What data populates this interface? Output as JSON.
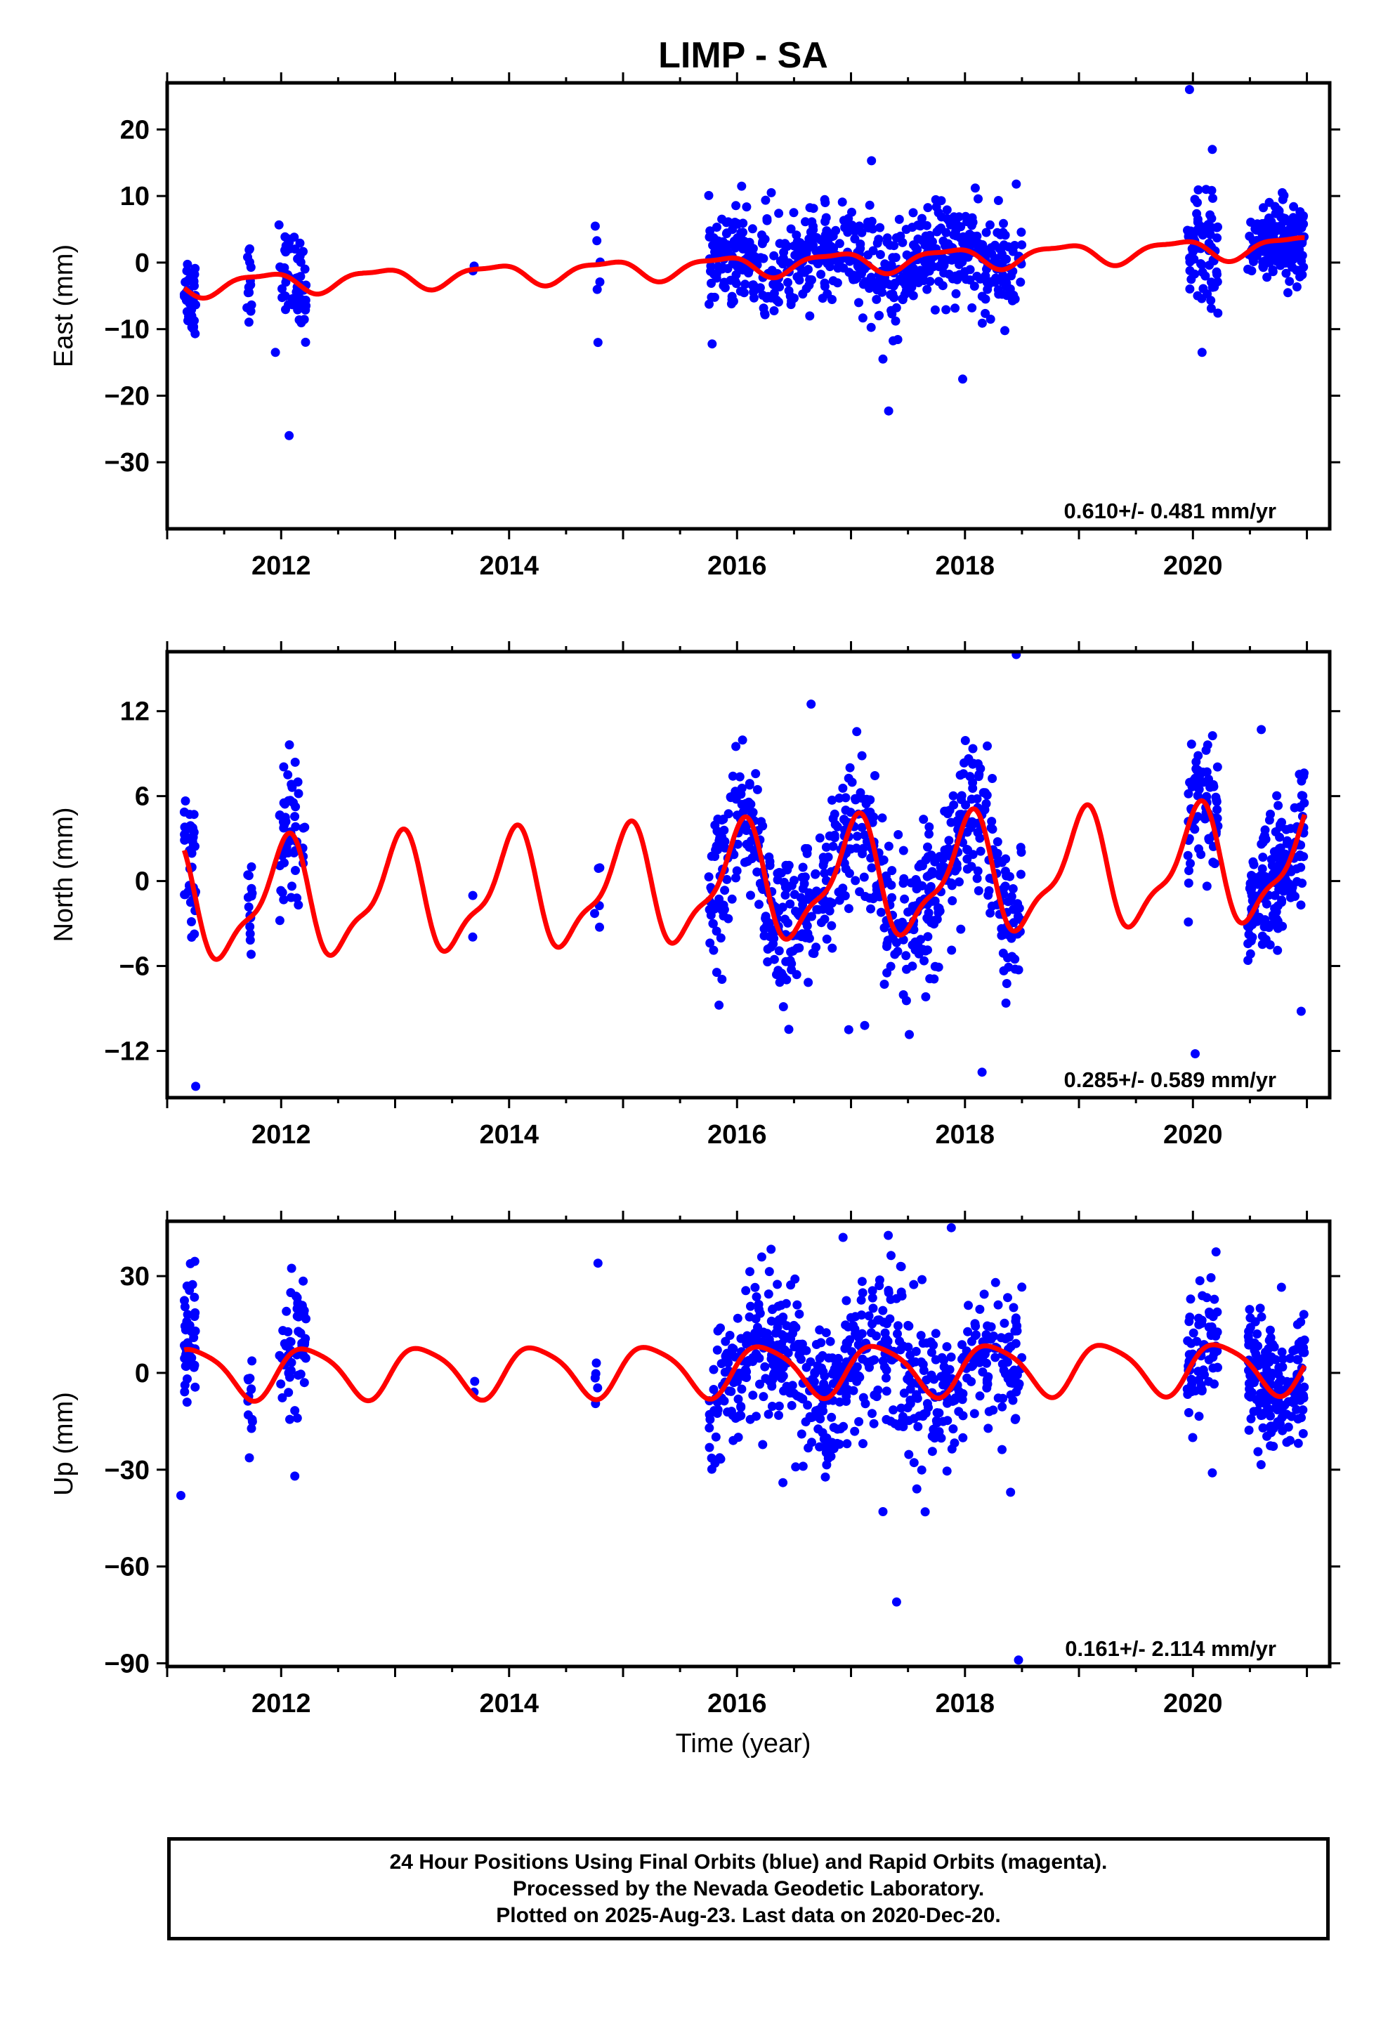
{
  "chart_data": {
    "title": "LIMP - SA",
    "type": "scatter",
    "xlabel": "Time (year)",
    "xlim": [
      2011.0,
      2021.2
    ],
    "xticks": [
      2012,
      2014,
      2016,
      2018,
      2020
    ],
    "colors": {
      "final_orbits": "#0000ff",
      "rapid_orbits": "#ff00ff",
      "model_fit": "#ff0000"
    },
    "panels": [
      {
        "component": "East",
        "ylabel": "East (mm)",
        "ylim": [
          -40,
          27
        ],
        "yticks": [
          20,
          10,
          0,
          -10,
          -20,
          -30
        ],
        "tick_labels": [
          "20",
          "10",
          "0",
          "−10",
          "−20",
          "−30"
        ],
        "rate_text": "0.610+/- 0.481 mm/yr",
        "model": {
          "rate": 0.61,
          "mean": -0.5,
          "annual_amp": 1.5,
          "annual_phase": 2.6,
          "semi_amp": 0.5,
          "semi_phase": 0.8
        },
        "data_clusters": [
          {
            "t0": 2011.15,
            "t1": 2011.25,
            "n": 40,
            "sd": 3.2
          },
          {
            "t0": 2011.7,
            "t1": 2011.75,
            "n": 14,
            "sd": 2.8
          },
          {
            "t0": 2011.98,
            "t1": 2012.22,
            "n": 55,
            "sd": 3.5
          },
          {
            "t0": 2013.68,
            "t1": 2013.7,
            "n": 2,
            "sd": 0.5
          },
          {
            "t0": 2014.75,
            "t1": 2014.8,
            "n": 5,
            "sd": 3.0
          },
          {
            "t0": 2015.75,
            "t1": 2018.5,
            "n": 620,
            "sd": 3.6
          },
          {
            "t0": 2019.95,
            "t1": 2020.22,
            "n": 70,
            "sd": 4.0
          },
          {
            "t0": 2020.48,
            "t1": 2020.98,
            "n": 180,
            "sd": 2.8
          }
        ],
        "outliers": [
          {
            "x": 2011.95,
            "y": -13.5
          },
          {
            "x": 2012.07,
            "y": -26.0
          },
          {
            "x": 2014.78,
            "y": -12.0
          },
          {
            "x": 2017.18,
            "y": 15.3
          },
          {
            "x": 2017.28,
            "y": -14.5
          },
          {
            "x": 2017.33,
            "y": -22.3
          },
          {
            "x": 2017.98,
            "y": -17.5
          },
          {
            "x": 2019.97,
            "y": 26.0
          },
          {
            "x": 2020.17,
            "y": 17.0
          },
          {
            "x": 2020.08,
            "y": -13.5
          },
          {
            "x": 2016.3,
            "y": 10.5
          },
          {
            "x": 2018.45,
            "y": 11.8
          }
        ]
      },
      {
        "component": "North",
        "ylabel": "North (mm)",
        "ylim": [
          -15.3,
          16.2
        ],
        "yticks": [
          12,
          6,
          0,
          -6,
          -12
        ],
        "tick_labels": [
          "12",
          "6",
          "0",
          "−6",
          "−12"
        ],
        "rate_text": "0.285+/- 0.589 mm/yr",
        "model": {
          "rate": 0.285,
          "mean": -0.3,
          "annual_amp": 3.8,
          "annual_phase": 1.4,
          "semi_amp": 1.3,
          "semi_phase": 0.2
        },
        "data_clusters": [
          {
            "t0": 2011.15,
            "t1": 2011.25,
            "n": 40,
            "sd": 3.0
          },
          {
            "t0": 2011.7,
            "t1": 2011.75,
            "n": 14,
            "sd": 2.0
          },
          {
            "t0": 2011.98,
            "t1": 2012.22,
            "n": 55,
            "sd": 2.8
          },
          {
            "t0": 2013.68,
            "t1": 2013.7,
            "n": 2,
            "sd": 1.5
          },
          {
            "t0": 2014.75,
            "t1": 2014.8,
            "n": 5,
            "sd": 1.8
          },
          {
            "t0": 2015.75,
            "t1": 2018.5,
            "n": 620,
            "sd": 2.6
          },
          {
            "t0": 2019.95,
            "t1": 2020.22,
            "n": 70,
            "sd": 2.8
          },
          {
            "t0": 2020.48,
            "t1": 2020.98,
            "n": 180,
            "sd": 2.4
          }
        ],
        "outliers": [
          {
            "x": 2011.25,
            "y": -14.5
          },
          {
            "x": 2016.65,
            "y": 12.5
          },
          {
            "x": 2018.45,
            "y": 16.0
          },
          {
            "x": 2018.15,
            "y": -13.5
          },
          {
            "x": 2020.02,
            "y": -12.2
          },
          {
            "x": 2016.98,
            "y": -10.5
          },
          {
            "x": 2017.12,
            "y": -10.2
          },
          {
            "x": 2020.6,
            "y": 10.7
          },
          {
            "x": 2020.95,
            "y": -9.2
          }
        ]
      },
      {
        "component": "Up",
        "ylabel": "Up (mm)",
        "ylim": [
          -91,
          47
        ],
        "yticks": [
          30,
          0,
          -30,
          -60,
          -90
        ],
        "tick_labels": [
          "30",
          "0",
          "−30",
          "−60",
          "−90"
        ],
        "rate_text": "0.161+/- 2.114 mm/yr",
        "model": {
          "rate": 0.161,
          "mean": 1.0,
          "annual_amp": 7.8,
          "annual_phase": 0.05,
          "semi_amp": 1.5,
          "semi_phase": 1.0
        },
        "data_clusters": [
          {
            "t0": 2011.15,
            "t1": 2011.25,
            "n": 40,
            "sd": 11.0
          },
          {
            "t0": 2011.7,
            "t1": 2011.75,
            "n": 14,
            "sd": 6.0
          },
          {
            "t0": 2011.98,
            "t1": 2012.22,
            "n": 55,
            "sd": 10.0
          },
          {
            "t0": 2013.68,
            "t1": 2013.7,
            "n": 2,
            "sd": 4.0
          },
          {
            "t0": 2014.75,
            "t1": 2014.8,
            "n": 5,
            "sd": 8.0
          },
          {
            "t0": 2015.75,
            "t1": 2018.5,
            "n": 620,
            "sd": 11.5
          },
          {
            "t0": 2019.95,
            "t1": 2020.22,
            "n": 70,
            "sd": 11.0
          },
          {
            "t0": 2020.48,
            "t1": 2020.98,
            "n": 180,
            "sd": 9.5
          }
        ],
        "outliers": [
          {
            "x": 2011.12,
            "y": -38.0
          },
          {
            "x": 2016.93,
            "y": 42.0
          },
          {
            "x": 2017.88,
            "y": 45.0
          },
          {
            "x": 2017.28,
            "y": -43.0
          },
          {
            "x": 2017.4,
            "y": -71.0
          },
          {
            "x": 2018.47,
            "y": -89.0
          },
          {
            "x": 2014.78,
            "y": 34.0
          },
          {
            "x": 2012.12,
            "y": -32.0
          },
          {
            "x": 2018.4,
            "y": -37.0
          },
          {
            "x": 2020.17,
            "y": -31.0
          }
        ]
      }
    ]
  },
  "footer": {
    "line1": "24 Hour Positions Using Final Orbits (blue) and Rapid Orbits (magenta).",
    "line2": "Processed by the Nevada Geodetic Laboratory.",
    "line3": "Plotted on 2025-Aug-23. Last data on 2020-Dec-20."
  }
}
